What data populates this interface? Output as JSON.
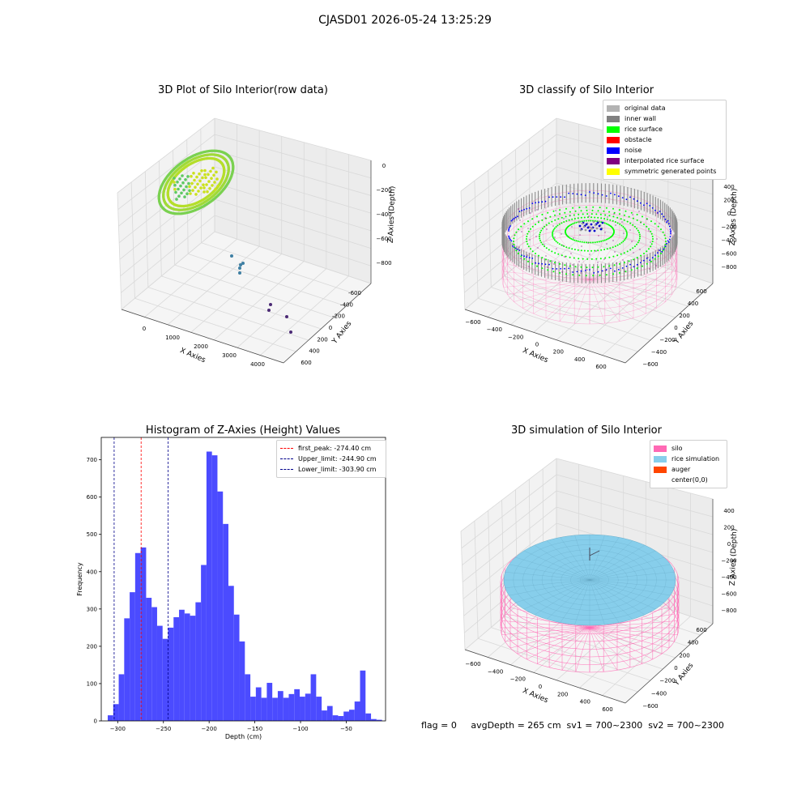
{
  "suptitle": "CJASD01 2026-05-24 13:25:29",
  "footer": "flag = 0     avgDepth = 265 cm  sv1 = 700~2300  sv2 = 700~2300",
  "chart_data": [
    {
      "type": "scatter",
      "title": "3D Plot of Silo Interior(row data)",
      "xlabel": "X Axies",
      "ylabel": "Y Axies",
      "zlabel": "Z Axies (Depth)",
      "x_ticks": [
        "0",
        "1000",
        "2000",
        "3000",
        "4000"
      ],
      "y_ticks": [
        "-600",
        "-400",
        "-200",
        "0",
        "200",
        "400",
        "600"
      ],
      "z_ticks": [
        "0",
        "−200",
        "−400",
        "−600",
        "−800"
      ]
    },
    {
      "type": "scatter",
      "title": "3D classify of Silo Interior",
      "xlabel": "X Axies",
      "ylabel": "Y Axies",
      "zlabel": "Z Axies (Depth)",
      "x_ticks": [
        "−600",
        "−400",
        "−200",
        "0",
        "200",
        "400",
        "600"
      ],
      "y_ticks": [
        "−600",
        "−400",
        "−200",
        "0",
        "200",
        "400",
        "600"
      ],
      "z_ticks": [
        "400",
        "200",
        "0",
        "−200",
        "−400",
        "−600",
        "−800"
      ],
      "legend": [
        {
          "label": "original data",
          "color": "#b3b3b3"
        },
        {
          "label": "inner wall",
          "color": "#808080"
        },
        {
          "label": "rice surface",
          "color": "#00ff00"
        },
        {
          "label": "obstacle",
          "color": "#ff0000"
        },
        {
          "label": "noise",
          "color": "#0000ff"
        },
        {
          "label": "interpolated rice surface",
          "color": "#800080"
        },
        {
          "label": "symmetric generated points",
          "color": "#ffff00"
        }
      ]
    },
    {
      "type": "bar",
      "title": "Histogram of Z-Axies (Height) Values",
      "xlabel": "Depth (cm)",
      "ylabel": "Frequency",
      "xlim": [
        -318,
        -7
      ],
      "ylim": [
        0,
        760
      ],
      "x_ticks": [
        -300,
        -250,
        -200,
        -150,
        -100,
        -50
      ],
      "y_ticks": [
        0,
        100,
        200,
        300,
        400,
        500,
        600,
        700
      ],
      "bar_color": "#4b4bff",
      "bin_edges": [
        -310.9,
        -304.9,
        -298.9,
        -292.9,
        -286.9,
        -280.9,
        -274.9,
        -268.9,
        -262.9,
        -256.9,
        -250.9,
        -244.9,
        -238.9,
        -232.9,
        -226.9,
        -220.9,
        -214.9,
        -208.9,
        -202.9,
        -196.9,
        -190.9,
        -184.9,
        -178.9,
        -172.9,
        -166.9,
        -160.9,
        -154.9,
        -148.9,
        -142.9,
        -136.9,
        -130.9,
        -124.9,
        -118.9,
        -112.9,
        -106.9,
        -100.9,
        -94.9,
        -88.9,
        -82.9,
        -76.9,
        -70.9,
        -64.9,
        -58.9,
        -52.9,
        -46.9,
        -40.9,
        -34.9,
        -28.9,
        -22.9,
        -16.9,
        -10.9
      ],
      "values": [
        15,
        45,
        125,
        275,
        345,
        450,
        465,
        330,
        305,
        255,
        220,
        250,
        278,
        298,
        288,
        282,
        318,
        418,
        722,
        712,
        615,
        528,
        362,
        285,
        213,
        125,
        65,
        90,
        62,
        102,
        62,
        80,
        62,
        72,
        85,
        65,
        73,
        125,
        65,
        28,
        40,
        15,
        13,
        25,
        30,
        52,
        135,
        20,
        5,
        3
      ],
      "lines": [
        {
          "label": "first_peak: -274.40 cm",
          "x": -274.4,
          "color": "#ff0000"
        },
        {
          "label": "Upper_limit: -244.90 cm",
          "x": -244.9,
          "color": "#00008b"
        },
        {
          "label": "Lower_limit: -303.90 cm",
          "x": -303.9,
          "color": "#00008b"
        }
      ]
    },
    {
      "type": "scatter",
      "title": "3D simulation of Silo Interior",
      "xlabel": "X Axies",
      "ylabel": "Y Axies",
      "zlabel": "Z Axies (Depth)",
      "x_ticks": [
        "−600",
        "−400",
        "−200",
        "0",
        "200",
        "400",
        "600"
      ],
      "y_ticks": [
        "−600",
        "−400",
        "−200",
        "0",
        "200",
        "400",
        "600"
      ],
      "z_ticks": [
        "400",
        "200",
        "0",
        "−200",
        "−400",
        "−600",
        "−800"
      ],
      "legend": [
        {
          "label": "silo",
          "color": "#ff69b4"
        },
        {
          "label": "rice simulation",
          "color": "#87ceeb"
        },
        {
          "label": "auger",
          "color": "#ff4500"
        },
        {
          "label": "center(0,0)",
          "color": "#ffffff"
        }
      ]
    }
  ]
}
